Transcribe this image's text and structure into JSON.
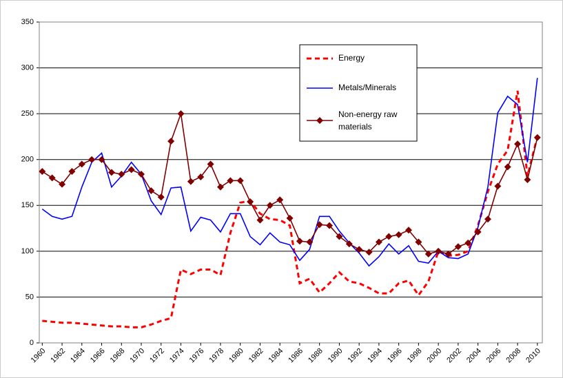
{
  "chart_data": {
    "type": "line",
    "x": [
      1960,
      1961,
      1962,
      1963,
      1964,
      1965,
      1966,
      1967,
      1968,
      1969,
      1970,
      1971,
      1972,
      1973,
      1974,
      1975,
      1976,
      1977,
      1978,
      1979,
      1980,
      1981,
      1982,
      1983,
      1984,
      1985,
      1986,
      1987,
      1988,
      1989,
      1990,
      1991,
      1992,
      1993,
      1994,
      1995,
      1996,
      1997,
      1998,
      1999,
      2000,
      2001,
      2002,
      2003,
      2004,
      2005,
      2006,
      2007,
      2008,
      2009,
      2010
    ],
    "xlim": [
      1959.7,
      2010.5
    ],
    "xticks": [
      1960,
      1962,
      1964,
      1966,
      1968,
      1970,
      1972,
      1974,
      1976,
      1978,
      1980,
      1982,
      1984,
      1986,
      1988,
      1990,
      1992,
      1994,
      1996,
      1998,
      2000,
      2002,
      2004,
      2006,
      2008,
      2010
    ],
    "ylim": [
      0,
      350
    ],
    "yticks": [
      0,
      50,
      100,
      150,
      200,
      250,
      300,
      350
    ],
    "grid": true,
    "legend_position": "upper center",
    "series": [
      {
        "name": "Energy",
        "color": "#ff0000",
        "style": "dashed",
        "values": [
          24,
          23,
          22,
          22,
          21,
          20,
          19,
          18,
          18,
          17,
          17,
          20,
          24,
          27,
          80,
          75,
          80,
          80,
          74,
          120,
          153,
          155,
          141,
          135,
          134,
          128,
          65,
          70,
          55,
          65,
          77,
          67,
          65,
          60,
          54,
          54,
          65,
          68,
          52,
          67,
          100,
          95,
          96,
          100,
          128,
          165,
          195,
          210,
          275,
          182,
          225
        ]
      },
      {
        "name": "Metals/Minerals",
        "color": "#0000ff",
        "style": "solid",
        "values": [
          146,
          138,
          135,
          138,
          170,
          197,
          207,
          170,
          182,
          197,
          184,
          155,
          140,
          169,
          170,
          122,
          137,
          134,
          121,
          141,
          141,
          116,
          107,
          120,
          110,
          107,
          90,
          102,
          138,
          138,
          122,
          109,
          98,
          84,
          94,
          108,
          97,
          106,
          89,
          87,
          100,
          93,
          92,
          97,
          126,
          170,
          251,
          269,
          260,
          197,
          289
        ]
      },
      {
        "name": "Non-energy raw materials",
        "color": "#800000",
        "style": "diamond",
        "values": [
          187,
          180,
          173,
          187,
          195,
          200,
          200,
          186,
          184,
          189,
          184,
          166,
          159,
          220,
          250,
          176,
          181,
          195,
          170,
          177,
          177,
          154,
          134,
          150,
          156,
          136,
          111,
          110,
          129,
          128,
          116,
          108,
          102,
          99,
          110,
          116,
          118,
          123,
          110,
          97,
          100,
          97,
          105,
          109,
          121,
          135,
          171,
          192,
          217,
          178,
          224
        ]
      }
    ]
  }
}
